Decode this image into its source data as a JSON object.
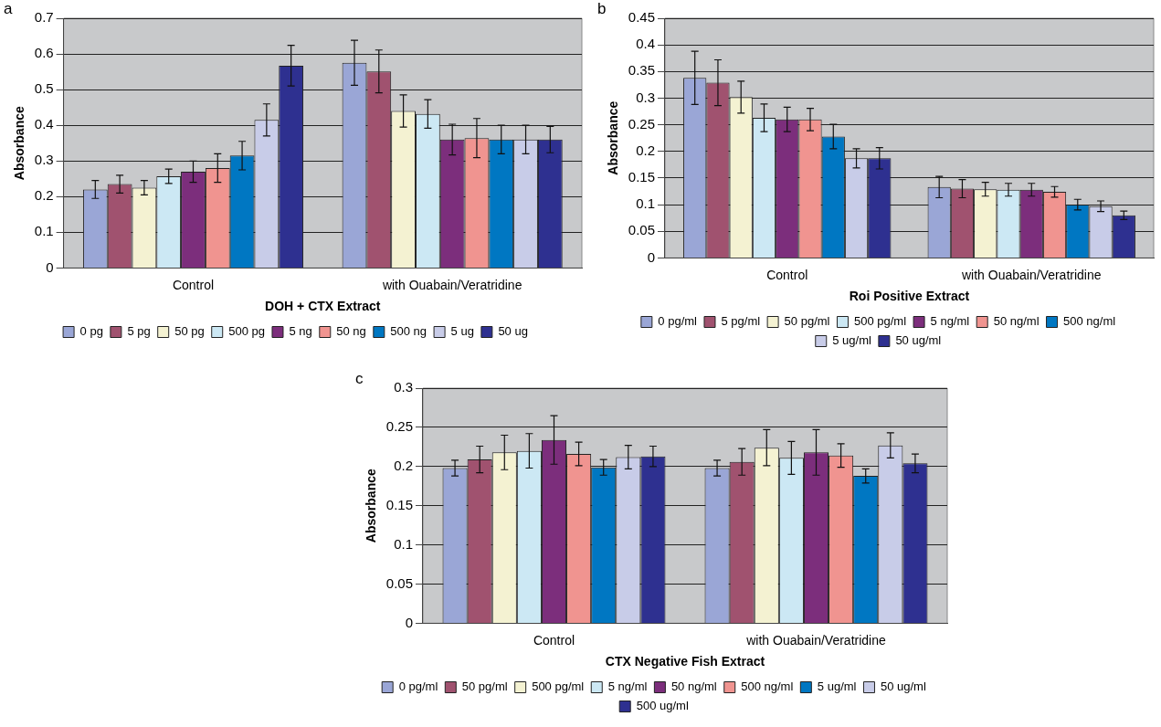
{
  "chart_data": [
    {
      "type": "bar",
      "annotations": [
        "a"
      ],
      "xlabel": "DOH + CTX Extract",
      "ylabel": "Absorbance",
      "categories": [
        "Control",
        "with Ouabain/Veratridine"
      ],
      "ylim": [
        0,
        0.7
      ],
      "yticks": [
        0,
        0.1,
        0.2,
        0.3,
        0.4,
        0.5,
        0.6,
        0.7
      ],
      "grid": "y",
      "legend": "bottom",
      "series": [
        {
          "name": "0 pg",
          "color": "#9aa6d6",
          "values": [
            0.22,
            0.575
          ],
          "errors": [
            0.025,
            0.063
          ]
        },
        {
          "name": "5 pg",
          "color": "#a0526f",
          "values": [
            0.235,
            0.551
          ],
          "errors": [
            0.025,
            0.06
          ]
        },
        {
          "name": "50 pg",
          "color": "#f4f2d2",
          "values": [
            0.225,
            0.44
          ],
          "errors": [
            0.02,
            0.045
          ]
        },
        {
          "name": "500 pg",
          "color": "#cce8f4",
          "values": [
            0.257,
            0.432
          ],
          "errors": [
            0.02,
            0.04
          ]
        },
        {
          "name": "5 ng",
          "color": "#7c2e7c",
          "values": [
            0.27,
            0.36
          ],
          "errors": [
            0.03,
            0.043
          ]
        },
        {
          "name": "50 ng",
          "color": "#f09490",
          "values": [
            0.28,
            0.364
          ],
          "errors": [
            0.04,
            0.055
          ]
        },
        {
          "name": "500 ng",
          "color": "#0077c2",
          "values": [
            0.315,
            0.36
          ],
          "errors": [
            0.04,
            0.04
          ]
        },
        {
          "name": "5 ug",
          "color": "#c8cce8",
          "values": [
            0.415,
            0.36
          ],
          "errors": [
            0.045,
            0.04
          ]
        },
        {
          "name": "50 ug",
          "color": "#2e3090",
          "values": [
            0.567,
            0.36
          ],
          "errors": [
            0.057,
            0.037
          ]
        }
      ]
    },
    {
      "type": "bar",
      "annotations": [
        "b"
      ],
      "xlabel": "Roi Positive Extract",
      "ylabel": "Absorbance",
      "categories": [
        "Control",
        "with Ouabain/Veratridine"
      ],
      "ylim": [
        0,
        0.45
      ],
      "yticks": [
        0,
        0.05,
        0.1,
        0.15,
        0.2,
        0.25,
        0.3,
        0.35,
        0.4,
        0.45
      ],
      "grid": "y",
      "legend": "bottom",
      "series": [
        {
          "name": "0 pg/ml",
          "color": "#9aa6d6",
          "values": [
            0.338,
            0.133
          ],
          "errors": [
            0.05,
            0.02
          ]
        },
        {
          "name": "5 pg/ml",
          "color": "#a0526f",
          "values": [
            0.329,
            0.13
          ],
          "errors": [
            0.043,
            0.017
          ]
        },
        {
          "name": "50 pg/ml",
          "color": "#f4f2d2",
          "values": [
            0.302,
            0.129
          ],
          "errors": [
            0.03,
            0.013
          ]
        },
        {
          "name": "500 pg/ml",
          "color": "#cce8f4",
          "values": [
            0.263,
            0.128
          ],
          "errors": [
            0.026,
            0.012
          ]
        },
        {
          "name": "5 ng/ml",
          "color": "#7c2e7c",
          "values": [
            0.26,
            0.128
          ],
          "errors": [
            0.023,
            0.012
          ]
        },
        {
          "name": "50 ng/ml",
          "color": "#f09490",
          "values": [
            0.26,
            0.124
          ],
          "errors": [
            0.021,
            0.01
          ]
        },
        {
          "name": "500 ng/ml",
          "color": "#0077c2",
          "values": [
            0.228,
            0.1
          ],
          "errors": [
            0.023,
            0.01
          ]
        },
        {
          "name": "5 ug/ml",
          "color": "#c8cce8",
          "values": [
            0.187,
            0.097
          ],
          "errors": [
            0.018,
            0.01
          ]
        },
        {
          "name": "50 ug/ml",
          "color": "#2e3090",
          "values": [
            0.187,
            0.08
          ],
          "errors": [
            0.02,
            0.008
          ]
        }
      ]
    },
    {
      "type": "bar",
      "annotations": [
        "c"
      ],
      "xlabel": "CTX Negative Fish Extract",
      "ylabel": "Absorbance",
      "categories": [
        "Control",
        "with Ouabain/Veratridine"
      ],
      "ylim": [
        0,
        0.3
      ],
      "yticks": [
        0,
        0.05,
        0.1,
        0.15,
        0.2,
        0.25,
        0.3
      ],
      "grid": "y",
      "legend": "bottom",
      "series": [
        {
          "name": "0 pg/ml",
          "color": "#9aa6d6",
          "values": [
            0.198,
            0.198
          ],
          "errors": [
            0.01,
            0.01
          ]
        },
        {
          "name": "50 pg/ml",
          "color": "#a0526f",
          "values": [
            0.209,
            0.206
          ],
          "errors": [
            0.017,
            0.017
          ]
        },
        {
          "name": "500 pg/ml",
          "color": "#f4f2d2",
          "values": [
            0.218,
            0.224
          ],
          "errors": [
            0.022,
            0.023
          ]
        },
        {
          "name": "5 ng/ml",
          "color": "#cce8f4",
          "values": [
            0.22,
            0.211
          ],
          "errors": [
            0.022,
            0.021
          ]
        },
        {
          "name": "50 ng/ml",
          "color": "#7c2e7c",
          "values": [
            0.234,
            0.218
          ],
          "errors": [
            0.031,
            0.029
          ]
        },
        {
          "name": "500 ng/ml",
          "color": "#f09490",
          "values": [
            0.216,
            0.214
          ],
          "errors": [
            0.015,
            0.015
          ]
        },
        {
          "name": "5 ug/ml",
          "color": "#0077c2",
          "values": [
            0.199,
            0.188
          ],
          "errors": [
            0.01,
            0.009
          ]
        },
        {
          "name": "50 ug/ml",
          "color": "#c8cce8",
          "values": [
            0.212,
            0.227
          ],
          "errors": [
            0.015,
            0.016
          ]
        },
        {
          "name": "500 ug/ml",
          "color": "#2e3090",
          "values": [
            0.213,
            0.204
          ],
          "errors": [
            0.013,
            0.012
          ]
        }
      ]
    }
  ]
}
